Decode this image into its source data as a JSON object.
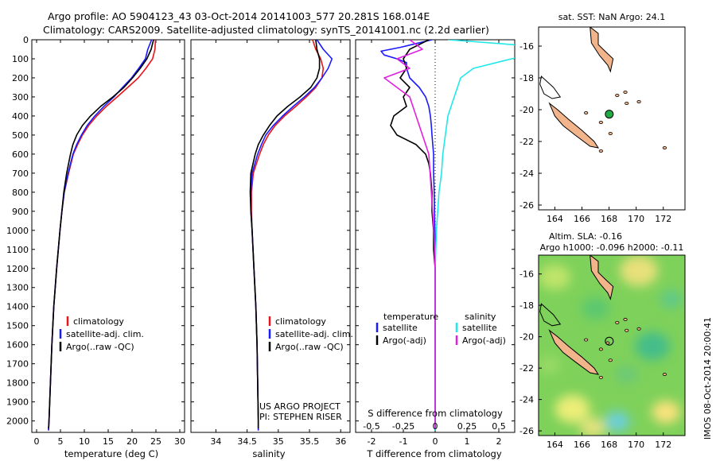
{
  "header": {
    "line1": "Argo profile: AO 5904123_43 03-Oct-2014 20141003_577 20.281S 168.014E",
    "line2": "Climatology: CARS2009. Satellite-adjusted climatology: synTS_20141001.nc (2.2d earlier)"
  },
  "colors": {
    "climatology": "#e8161b",
    "satellite": "#1a1aff",
    "argo": "#000000",
    "sal_satellite": "#22e8e8",
    "sal_argo": "#e020e0",
    "land": "#f2b48a",
    "float_marker": "#22aa44"
  },
  "credits": {
    "project": "US ARGO PROJECT",
    "pi": "PI: STEPHEN RISER",
    "imos": "IMOS 08-Oct-2014 20:00:41"
  },
  "chart_data": [
    {
      "id": "temperature",
      "type": "line",
      "xlabel": "temperature (deg C)",
      "ylabel": "",
      "xlim": [
        -1,
        31
      ],
      "ylim": [
        2060,
        0
      ],
      "xticks": [
        "0",
        "5",
        "10",
        "15",
        "20",
        "25",
        "30"
      ],
      "xtick_values": [
        0,
        5,
        10,
        15,
        20,
        25,
        30
      ],
      "yticks": [
        "0",
        "100",
        "200",
        "300",
        "400",
        "500",
        "600",
        "700",
        "800",
        "900",
        "1000",
        "1100",
        "1200",
        "1300",
        "1400",
        "1500",
        "1600",
        "1700",
        "1800",
        "1900",
        "2000"
      ],
      "ytick_values": [
        0,
        100,
        200,
        300,
        400,
        500,
        600,
        700,
        800,
        900,
        1000,
        1100,
        1200,
        1300,
        1400,
        1500,
        1600,
        1700,
        1800,
        1900,
        2000
      ],
      "legend": [
        "climatology",
        "satellite-adj. clim.",
        "Argo(..raw -QC)"
      ],
      "series": [
        {
          "name": "climatology",
          "color_key": "climatology",
          "depth": [
            0,
            50,
            100,
            150,
            200,
            250,
            300,
            350,
            400,
            450,
            500,
            550,
            600,
            700,
            800,
            900,
            1000,
            1200,
            1400,
            1600,
            1800,
            2000,
            2050
          ],
          "values": [
            24.9,
            24.8,
            24.3,
            22.9,
            21.3,
            19.1,
            16.9,
            14.6,
            12.6,
            10.9,
            9.6,
            8.6,
            7.7,
            6.7,
            5.8,
            5.3,
            4.9,
            4.2,
            3.6,
            3.2,
            2.9,
            2.6,
            2.5
          ]
        },
        {
          "name": "satellite-adj. clim.",
          "color_key": "satellite",
          "depth": [
            0,
            50,
            100,
            150,
            200,
            250,
            300,
            350,
            400,
            450,
            500,
            550,
            600,
            700,
            800,
            900,
            1000,
            1200,
            1400,
            1600,
            1800,
            2000,
            2050
          ],
          "values": [
            24.1,
            23.3,
            22.8,
            21.4,
            19.9,
            18.0,
            16.2,
            14.1,
            12.2,
            10.6,
            9.4,
            8.4,
            7.6,
            6.6,
            5.8,
            5.3,
            4.9,
            4.2,
            3.6,
            3.2,
            2.9,
            2.6,
            2.5
          ]
        },
        {
          "name": "Argo(..raw -QC)",
          "color_key": "argo",
          "depth": [
            0,
            50,
            100,
            150,
            200,
            250,
            300,
            350,
            400,
            450,
            500,
            550,
            600,
            700,
            800,
            900,
            1000,
            1200,
            1400,
            1600,
            1800,
            2000,
            2040
          ],
          "values": [
            24.5,
            24.0,
            23.1,
            21.7,
            20.1,
            18.3,
            16.0,
            13.4,
            11.3,
            9.6,
            8.4,
            7.6,
            7.1,
            6.3,
            5.7,
            5.3,
            4.9,
            4.2,
            3.6,
            3.2,
            2.9,
            2.6,
            2.5
          ]
        }
      ]
    },
    {
      "id": "salinity",
      "type": "line",
      "xlabel": "salinity",
      "ylabel": "",
      "xlim": [
        33.6,
        36.15
      ],
      "ylim": [
        2060,
        0
      ],
      "xticks": [
        "34",
        "34.5",
        "35",
        "35.5",
        "36"
      ],
      "xtick_values": [
        34,
        34.5,
        35,
        35.5,
        36
      ],
      "legend": [
        "climatology",
        "satellite-adj. clim.",
        "Argo(..raw -QC)"
      ],
      "series": [
        {
          "name": "climatology",
          "color_key": "climatology",
          "depth": [
            0,
            50,
            100,
            150,
            200,
            250,
            300,
            350,
            400,
            450,
            500,
            550,
            600,
            700,
            800,
            900,
            1000,
            1200,
            1400,
            1600,
            1800,
            2000,
            2050
          ],
          "values": [
            35.55,
            35.6,
            35.68,
            35.72,
            35.7,
            35.6,
            35.45,
            35.28,
            35.1,
            34.95,
            34.84,
            34.76,
            34.7,
            34.6,
            34.57,
            34.57,
            34.58,
            34.61,
            34.64,
            34.66,
            34.67,
            34.68,
            34.68
          ]
        },
        {
          "name": "satellite-adj. clim.",
          "color_key": "satellite",
          "depth": [
            0,
            50,
            100,
            150,
            200,
            250,
            300,
            350,
            400,
            450,
            500,
            550,
            600,
            700,
            800,
            900,
            1000,
            1200,
            1400,
            1600,
            1800,
            2000,
            2050
          ],
          "values": [
            35.62,
            35.72,
            35.86,
            35.8,
            35.7,
            35.58,
            35.42,
            35.24,
            35.07,
            34.92,
            34.8,
            34.73,
            34.67,
            34.58,
            34.56,
            34.56,
            34.58,
            34.61,
            34.64,
            34.66,
            34.67,
            34.68,
            34.68
          ]
        },
        {
          "name": "Argo(..raw -QC)",
          "color_key": "argo",
          "depth": [
            0,
            50,
            100,
            150,
            200,
            250,
            300,
            350,
            400,
            450,
            500,
            550,
            600,
            700,
            800,
            900,
            1000,
            1200,
            1400,
            1600,
            1800,
            2000,
            2040
          ],
          "values": [
            35.6,
            35.62,
            35.66,
            35.66,
            35.62,
            35.52,
            35.35,
            35.15,
            34.98,
            34.86,
            34.76,
            34.68,
            34.63,
            34.56,
            34.55,
            34.56,
            34.58,
            34.61,
            34.64,
            34.66,
            34.67,
            34.68,
            34.68
          ]
        }
      ]
    },
    {
      "id": "differences",
      "type": "line",
      "xlabel_T": "T difference from climatology",
      "xlabel_S": "S difference from climatology",
      "xlim": [
        -2.5,
        2.5
      ],
      "ylim": [
        2060,
        0
      ],
      "xticks_T": [
        "-2",
        "-1",
        "0",
        "1",
        "2"
      ],
      "xtick_values_T": [
        -2,
        -1,
        0,
        1,
        2
      ],
      "xticks_S": [
        "-0.5",
        "-0.25",
        "0",
        "0.25",
        "0.5"
      ],
      "xtick_values_S": [
        -0.5,
        -0.25,
        0,
        0.25,
        0.5
      ],
      "legend_T_title": "temperature",
      "legend_S_title": "salinity",
      "legend_T": [
        "satellite",
        "Argo(-adj)"
      ],
      "legend_S": [
        "satellite",
        "Argo(-adj)"
      ],
      "series": [
        {
          "name": "T satellite",
          "color_key": "satellite",
          "depth": [
            0,
            20,
            40,
            60,
            80,
            100,
            120,
            150,
            200,
            250,
            300,
            350,
            400,
            450,
            500,
            600,
            700,
            800,
            900,
            1000,
            1100,
            1200,
            1300,
            1400,
            1600,
            1800,
            2000,
            2050
          ],
          "values": [
            -0.1,
            -0.6,
            -1.1,
            -1.7,
            -1.6,
            -1.2,
            -0.9,
            -0.9,
            -0.8,
            -0.5,
            -0.3,
            -0.2,
            -0.15,
            -0.12,
            -0.1,
            -0.05,
            -0.05,
            -0.03,
            -0.02,
            -0.01,
            0,
            0,
            0,
            0,
            0,
            0,
            0,
            0
          ]
        },
        {
          "name": "T Argo(-adj)",
          "color_key": "argo",
          "depth": [
            0,
            50,
            100,
            150,
            200,
            250,
            300,
            350,
            400,
            450,
            500,
            550,
            600,
            650,
            700,
            800,
            900,
            1000,
            1100,
            1200,
            1300,
            1400,
            1600,
            1800,
            2000,
            2040
          ],
          "values": [
            -0.2,
            -0.8,
            -1.0,
            -0.9,
            -1.1,
            -0.8,
            -1.0,
            -0.9,
            -1.3,
            -1.4,
            -1.2,
            -0.6,
            -0.3,
            -0.2,
            -0.15,
            -0.1,
            -0.1,
            -0.05,
            -0.05,
            0,
            0,
            0,
            0,
            0,
            0,
            0
          ]
        },
        {
          "name": "S satellite",
          "color_key": "sal_satellite",
          "depth": [
            0,
            30,
            60,
            100,
            150,
            200,
            300,
            400,
            500,
            600,
            700,
            800,
            900,
            1000,
            1200,
            1400,
            1600,
            1800,
            2000,
            2050
          ],
          "values": [
            0.1,
            0.7,
            0.9,
            0.6,
            0.3,
            0.2,
            0.15,
            0.1,
            0.08,
            0.06,
            0.05,
            0.03,
            0.02,
            0.01,
            0,
            0,
            0,
            0,
            0,
            0
          ]
        },
        {
          "name": "S Argo(-adj)",
          "color_key": "sal_argo",
          "depth": [
            0,
            50,
            100,
            150,
            200,
            250,
            300,
            400,
            500,
            600,
            700,
            800,
            900,
            1000,
            1200,
            1400,
            1600,
            1800,
            2000,
            2040
          ],
          "values": [
            -0.2,
            -0.1,
            -0.3,
            -0.2,
            -0.4,
            -0.3,
            -0.2,
            -0.15,
            -0.1,
            -0.05,
            -0.04,
            -0.03,
            -0.02,
            -0.01,
            0,
            0,
            0,
            0,
            0,
            0
          ]
        }
      ]
    },
    {
      "id": "sst_map",
      "type": "map",
      "title": "sat. SST: NaN Argo: 24.1",
      "xlim": [
        162.8,
        173.6
      ],
      "ylim": [
        -26.3,
        -14.8
      ],
      "xticks": [
        "164",
        "166",
        "168",
        "170",
        "172"
      ],
      "xtick_values": [
        164,
        166,
        168,
        170,
        172
      ],
      "yticks": [
        "-16",
        "-18",
        "-20",
        "-22",
        "-24",
        "-26"
      ],
      "ytick_values": [
        -16,
        -18,
        -20,
        -22,
        -24,
        -26
      ],
      "float": {
        "lon": 168.014,
        "lat": -20.281
      }
    },
    {
      "id": "sla_map",
      "type": "heatmap",
      "title1": "Altim. SLA: -0.16",
      "title2": "Argo h1000: -0.096 h2000: -0.11",
      "xlim": [
        162.8,
        173.6
      ],
      "ylim": [
        -26.3,
        -14.8
      ],
      "xticks": [
        "164",
        "166",
        "168",
        "170",
        "172"
      ],
      "xtick_values": [
        164,
        166,
        168,
        170,
        172
      ],
      "yticks": [
        "-16",
        "-18",
        "-20",
        "-22",
        "-24",
        "-26"
      ],
      "ytick_values": [
        -16,
        -18,
        -20,
        -22,
        -24,
        -26
      ],
      "float": {
        "lon": 168.014,
        "lat": -20.281
      }
    }
  ]
}
